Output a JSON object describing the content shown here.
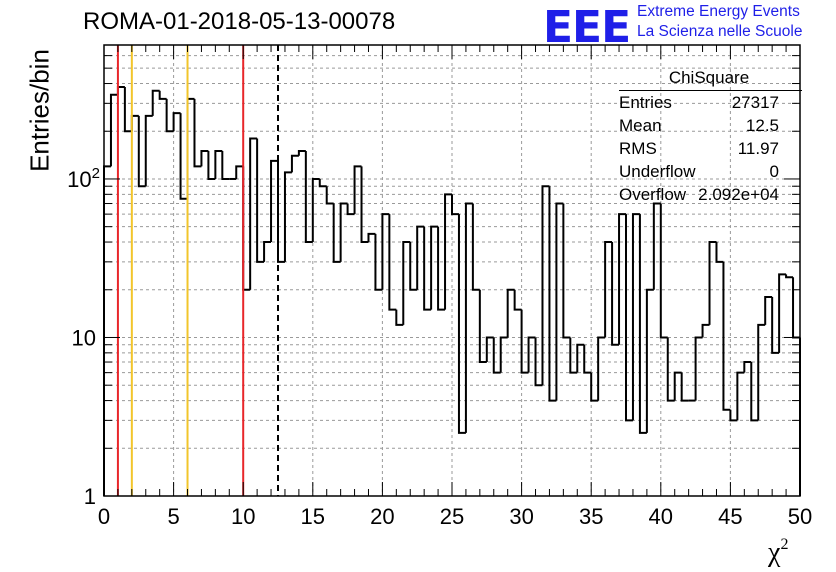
{
  "title": "ROMA-01-2018-05-13-00078",
  "logo": {
    "mark": "EEE",
    "line1": "Extreme Energy Events",
    "line2": "La Scienza nelle Scuole",
    "color": "#1f1fe8"
  },
  "stats_box": {
    "title": "ChiSquare",
    "rows": [
      {
        "key": "Entries",
        "value": "27317"
      },
      {
        "key": "Mean",
        "value": "12.5"
      },
      {
        "key": "RMS",
        "value": "11.97"
      },
      {
        "key": "Underflow",
        "value": "0"
      },
      {
        "key": "Overflow",
        "value": "2.092e+04"
      }
    ]
  },
  "chart_data": {
    "type": "histogram",
    "title": "ROMA-01-2018-05-13-00078",
    "xlabel": "χ",
    "xlabel_sup": "2",
    "ylabel": "Entries/bin",
    "xlim": [
      0,
      50
    ],
    "ylim": [
      1,
      700
    ],
    "yscale": "log",
    "grid": true,
    "bin_width": 0.5,
    "x_ticks": [
      "0",
      "5",
      "10",
      "15",
      "20",
      "25",
      "30",
      "35",
      "40",
      "45",
      "50"
    ],
    "y_ticks": [
      {
        "value": 1,
        "label": "1"
      },
      {
        "value": 10,
        "label": "10"
      },
      {
        "value": 100,
        "label": "10",
        "exponent": "2"
      }
    ],
    "values": [
      120,
      340,
      380,
      200,
      250,
      90,
      250,
      360,
      320,
      200,
      260,
      75,
      320,
      120,
      150,
      100,
      150,
      100,
      100,
      120,
      20,
      180,
      30,
      40,
      130,
      30,
      110,
      140,
      150,
      40,
      100,
      90,
      70,
      30,
      70,
      60,
      120,
      40,
      45,
      20,
      60,
      15,
      12,
      40,
      20,
      50,
      15,
      50,
      15,
      80,
      60,
      2.5,
      70,
      20,
      7,
      10,
      6,
      10,
      20,
      15,
      6,
      10,
      5,
      90,
      4,
      70,
      10,
      6,
      9,
      6,
      4,
      10,
      40,
      9,
      60,
      3,
      60,
      2.5,
      20,
      70,
      10,
      4,
      6,
      4,
      4,
      10,
      12,
      40,
      30,
      3.5,
      3,
      6,
      7,
      3,
      12,
      18,
      8,
      25,
      24,
      10
    ],
    "vertical_lines": [
      {
        "x": 1,
        "color": "#e8262a",
        "style": "solid"
      },
      {
        "x": 2,
        "color": "#f2c52b",
        "style": "solid"
      },
      {
        "x": 6,
        "color": "#f2c52b",
        "style": "solid"
      },
      {
        "x": 10,
        "color": "#e8262a",
        "style": "solid"
      },
      {
        "x": 12.5,
        "color": "#000000",
        "style": "dashed"
      }
    ]
  }
}
